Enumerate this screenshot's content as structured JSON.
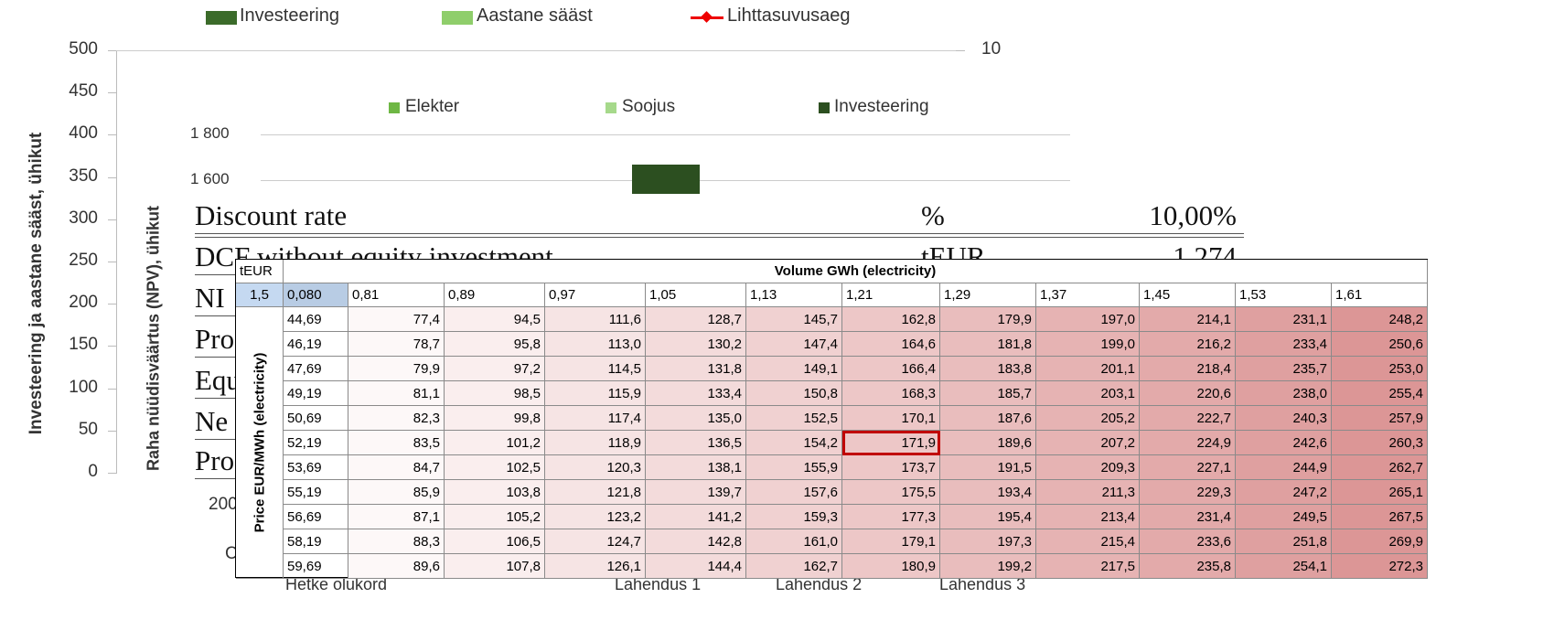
{
  "back_chart": {
    "legend": [
      "Investeering",
      "Aastane sääst",
      "Lihttasuvusaeg"
    ],
    "y_axis_label": "Investeering ja aastane sääst, ühikut",
    "yticks": [
      "500",
      "450",
      "400",
      "350",
      "300",
      "250",
      "200",
      "150",
      "100",
      "50",
      "0"
    ],
    "y2ticks": [
      "10"
    ],
    "categories": [
      "Hetke olukord",
      "Lahendus 1",
      "Lahendus 2",
      "Lahendus 3"
    ],
    "fragments": [
      "200",
      "C"
    ]
  },
  "npv_chart": {
    "legend": [
      "Elekter",
      "Soojus",
      "Investeering"
    ],
    "y_axis_label": "Raha nüüdisväärtus (NPV), ühikut",
    "yticks": [
      "1 800",
      "1 600"
    ]
  },
  "summary": {
    "rows": [
      [
        "Discount rate",
        "%",
        "10,00%"
      ],
      [
        "DCF without equity investment",
        "tEUR",
        "1 274"
      ],
      [
        "NI"
      ],
      [
        "Pro"
      ],
      [
        "Equ"
      ],
      [
        "Ne"
      ],
      [
        "Pro"
      ]
    ]
  },
  "sensitivity": {
    "unit": "tEUR",
    "column_title": "Volume GWh (electricity)",
    "row_title": "Price EUR/MWh (electricity)",
    "corner": [
      "1,5",
      "0,080"
    ],
    "highlight": [
      5,
      5
    ],
    "columns": [
      "0,81",
      "0,89",
      "0,97",
      "1,05",
      "1,13",
      "1,21",
      "1,29",
      "1,37",
      "1,45",
      "1,53",
      "1,61"
    ],
    "rows": [
      {
        "price": "44,69",
        "values": [
          "77,4",
          "94,5",
          "111,6",
          "128,7",
          "145,7",
          "162,8",
          "179,9",
          "197,0",
          "214,1",
          "231,1",
          "248,2"
        ]
      },
      {
        "price": "46,19",
        "values": [
          "78,7",
          "95,8",
          "113,0",
          "130,2",
          "147,4",
          "164,6",
          "181,8",
          "199,0",
          "216,2",
          "233,4",
          "250,6"
        ]
      },
      {
        "price": "47,69",
        "values": [
          "79,9",
          "97,2",
          "114,5",
          "131,8",
          "149,1",
          "166,4",
          "183,8",
          "201,1",
          "218,4",
          "235,7",
          "253,0"
        ]
      },
      {
        "price": "49,19",
        "values": [
          "81,1",
          "98,5",
          "115,9",
          "133,4",
          "150,8",
          "168,3",
          "185,7",
          "203,1",
          "220,6",
          "238,0",
          "255,4"
        ]
      },
      {
        "price": "50,69",
        "values": [
          "82,3",
          "99,8",
          "117,4",
          "135,0",
          "152,5",
          "170,1",
          "187,6",
          "205,2",
          "222,7",
          "240,3",
          "257,9"
        ]
      },
      {
        "price": "52,19",
        "values": [
          "83,5",
          "101,2",
          "118,9",
          "136,5",
          "154,2",
          "171,9",
          "189,6",
          "207,2",
          "224,9",
          "242,6",
          "260,3"
        ]
      },
      {
        "price": "53,69",
        "values": [
          "84,7",
          "102,5",
          "120,3",
          "138,1",
          "155,9",
          "173,7",
          "191,5",
          "209,3",
          "227,1",
          "244,9",
          "262,7"
        ]
      },
      {
        "price": "55,19",
        "values": [
          "85,9",
          "103,8",
          "121,8",
          "139,7",
          "157,6",
          "175,5",
          "193,4",
          "211,3",
          "229,3",
          "247,2",
          "265,1"
        ]
      },
      {
        "price": "56,69",
        "values": [
          "87,1",
          "105,2",
          "123,2",
          "141,2",
          "159,3",
          "177,3",
          "195,4",
          "213,4",
          "231,4",
          "249,5",
          "267,5"
        ]
      },
      {
        "price": "58,19",
        "values": [
          "88,3",
          "106,5",
          "124,7",
          "142,8",
          "161,0",
          "179,1",
          "197,3",
          "215,4",
          "233,6",
          "251,8",
          "269,9"
        ]
      },
      {
        "price": "59,69",
        "values": [
          "89,6",
          "107,8",
          "126,1",
          "144,4",
          "162,7",
          "180,9",
          "199,2",
          "217,5",
          "235,8",
          "254,1",
          "272,3"
        ]
      }
    ]
  }
}
